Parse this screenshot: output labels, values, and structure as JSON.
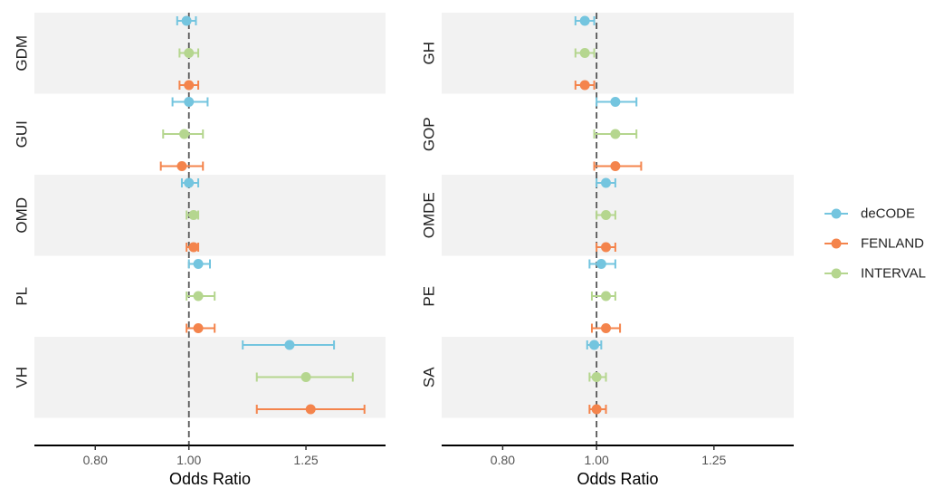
{
  "chart_data": {
    "type": "forest",
    "xlabel": "Odds Ratio",
    "xlim": [
      0.67,
      1.42
    ],
    "xticks": [
      0.8,
      1.0,
      1.25
    ],
    "xtick_labels": [
      "0.80",
      "1.00",
      "1.25"
    ],
    "reference_line": 1.0,
    "grid": false,
    "legend_position": "right",
    "series": [
      {
        "name": "deCODE",
        "color": "#74C5DF"
      },
      {
        "name": "FENLAND",
        "color": "#F4844C"
      },
      {
        "name": "INTERVAL",
        "color": "#B5D68F"
      }
    ],
    "row_order": [
      "deCODE",
      "INTERVAL",
      "FENLAND"
    ],
    "panels": [
      {
        "groups": [
          {
            "label": "GDM",
            "rows": [
              {
                "series": "deCODE",
                "or": 0.995,
                "lo": 0.975,
                "hi": 1.015
              },
              {
                "series": "INTERVAL",
                "or": 1.0,
                "lo": 0.98,
                "hi": 1.02
              },
              {
                "series": "FENLAND",
                "or": 1.0,
                "lo": 0.98,
                "hi": 1.02
              }
            ]
          },
          {
            "label": "GUI",
            "rows": [
              {
                "series": "deCODE",
                "or": 1.0,
                "lo": 0.965,
                "hi": 1.04
              },
              {
                "series": "INTERVAL",
                "or": 0.99,
                "lo": 0.945,
                "hi": 1.03
              },
              {
                "series": "FENLAND",
                "or": 0.985,
                "lo": 0.94,
                "hi": 1.03
              }
            ]
          },
          {
            "label": "OMD",
            "rows": [
              {
                "series": "deCODE",
                "or": 1.0,
                "lo": 0.985,
                "hi": 1.02
              },
              {
                "series": "INTERVAL",
                "or": 1.01,
                "lo": 0.995,
                "hi": 1.02
              },
              {
                "series": "FENLAND",
                "or": 1.01,
                "lo": 0.995,
                "hi": 1.02
              }
            ]
          },
          {
            "label": "PL",
            "rows": [
              {
                "series": "deCODE",
                "or": 1.02,
                "lo": 1.0,
                "hi": 1.045
              },
              {
                "series": "INTERVAL",
                "or": 1.02,
                "lo": 0.995,
                "hi": 1.055
              },
              {
                "series": "FENLAND",
                "or": 1.02,
                "lo": 0.995,
                "hi": 1.055
              }
            ]
          },
          {
            "label": "VH",
            "rows": [
              {
                "series": "deCODE",
                "or": 1.215,
                "lo": 1.115,
                "hi": 1.31
              },
              {
                "series": "INTERVAL",
                "or": 1.25,
                "lo": 1.145,
                "hi": 1.35
              },
              {
                "series": "FENLAND",
                "or": 1.26,
                "lo": 1.145,
                "hi": 1.375
              }
            ]
          }
        ]
      },
      {
        "groups": [
          {
            "label": "GH",
            "rows": [
              {
                "series": "deCODE",
                "or": 0.975,
                "lo": 0.955,
                "hi": 0.995
              },
              {
                "series": "INTERVAL",
                "or": 0.975,
                "lo": 0.955,
                "hi": 0.995
              },
              {
                "series": "FENLAND",
                "or": 0.975,
                "lo": 0.955,
                "hi": 0.995
              }
            ]
          },
          {
            "label": "GOP",
            "rows": [
              {
                "series": "deCODE",
                "or": 1.04,
                "lo": 1.0,
                "hi": 1.085
              },
              {
                "series": "INTERVAL",
                "or": 1.04,
                "lo": 0.995,
                "hi": 1.085
              },
              {
                "series": "FENLAND",
                "or": 1.04,
                "lo": 0.995,
                "hi": 1.095
              }
            ]
          },
          {
            "label": "OMDE",
            "rows": [
              {
                "series": "deCODE",
                "or": 1.02,
                "lo": 1.0,
                "hi": 1.04
              },
              {
                "series": "INTERVAL",
                "or": 1.02,
                "lo": 1.0,
                "hi": 1.04
              },
              {
                "series": "FENLAND",
                "or": 1.02,
                "lo": 1.0,
                "hi": 1.04
              }
            ]
          },
          {
            "label": "PE",
            "rows": [
              {
                "series": "deCODE",
                "or": 1.01,
                "lo": 0.985,
                "hi": 1.04
              },
              {
                "series": "INTERVAL",
                "or": 1.02,
                "lo": 0.99,
                "hi": 1.04
              },
              {
                "series": "FENLAND",
                "or": 1.02,
                "lo": 0.99,
                "hi": 1.05
              }
            ]
          },
          {
            "label": "SA",
            "rows": [
              {
                "series": "deCODE",
                "or": 0.995,
                "lo": 0.98,
                "hi": 1.01
              },
              {
                "series": "INTERVAL",
                "or": 1.0,
                "lo": 0.985,
                "hi": 1.02
              },
              {
                "series": "FENLAND",
                "or": 1.0,
                "lo": 0.985,
                "hi": 1.02
              }
            ]
          }
        ]
      }
    ]
  }
}
